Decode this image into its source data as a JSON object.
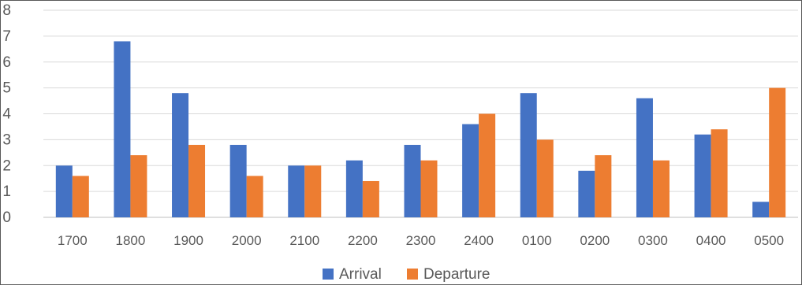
{
  "chart_data": {
    "type": "bar",
    "title": "",
    "xlabel": "",
    "ylabel": "",
    "categories": [
      "1700",
      "1800",
      "1900",
      "2000",
      "2100",
      "2200",
      "2300",
      "2400",
      "0100",
      "0200",
      "0300",
      "0400",
      "0500"
    ],
    "series": [
      {
        "name": "Arrival",
        "color": "#4472C4",
        "values": [
          2.0,
          6.8,
          4.8,
          2.8,
          2.0,
          2.2,
          2.8,
          3.6,
          4.8,
          1.8,
          4.6,
          3.2,
          0.6
        ]
      },
      {
        "name": "Departure",
        "color": "#ED7D31",
        "values": [
          1.6,
          2.4,
          2.8,
          1.6,
          2.0,
          1.4,
          2.2,
          4.0,
          3.0,
          2.4,
          2.2,
          3.4,
          5.0
        ]
      }
    ],
    "yticks": [
      "0",
      "1",
      "2",
      "3",
      "4",
      "5",
      "6",
      "7",
      "8"
    ],
    "ylim": [
      0,
      8
    ],
    "grid": true,
    "legend_position": "bottom"
  }
}
